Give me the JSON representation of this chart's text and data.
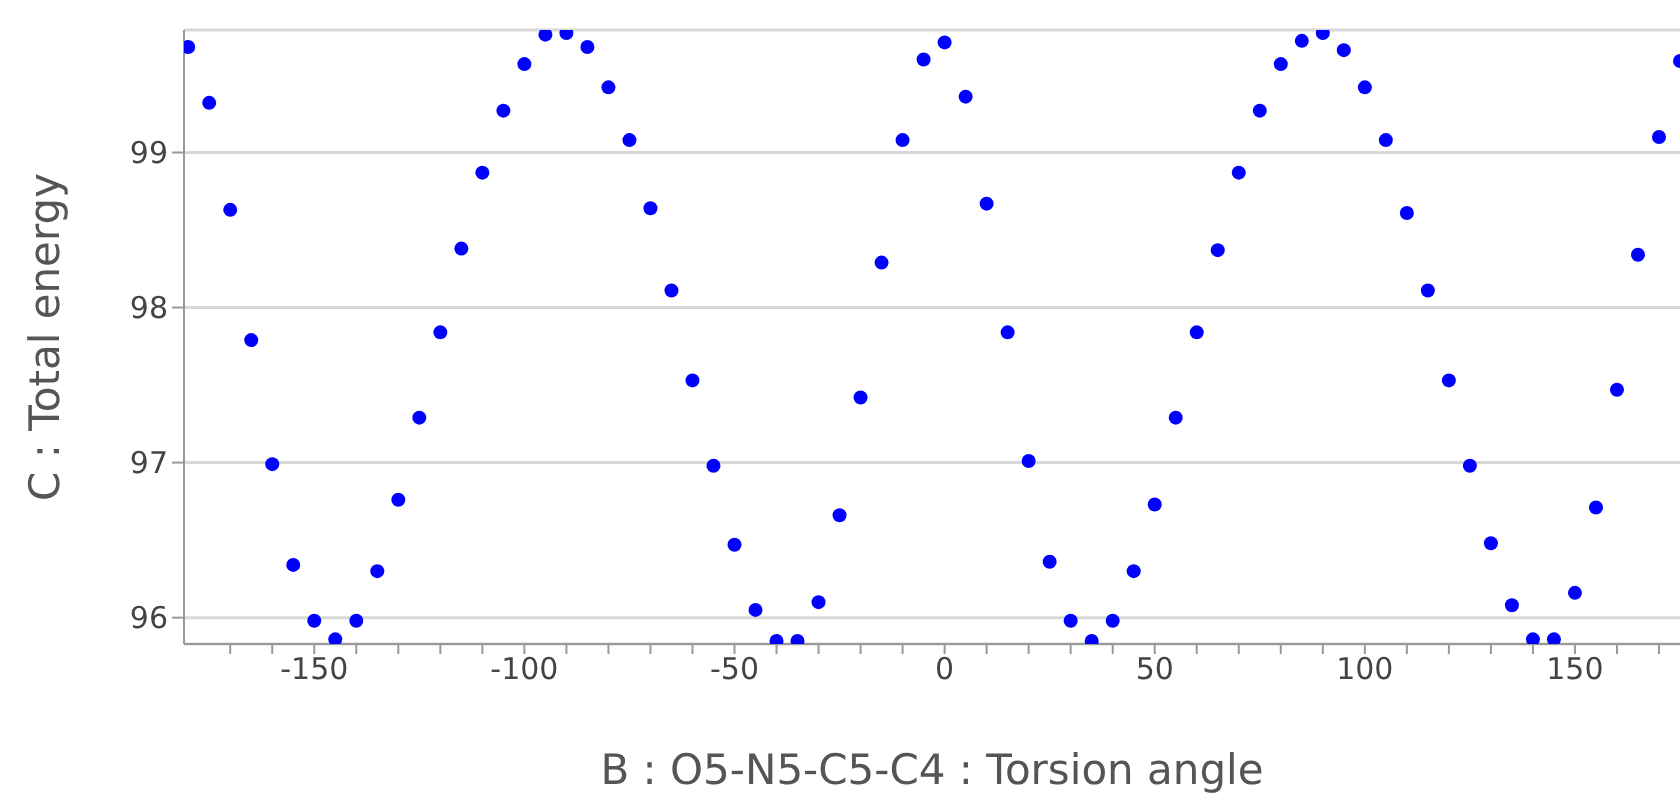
{
  "chart_data": {
    "type": "scatter",
    "xlabel": "B : O5-N5-C5-C4 : Torsion angle",
    "ylabel": "C : Total energy",
    "x": [
      -180,
      -175,
      -170,
      -165,
      -160,
      -155,
      -150,
      -145,
      -140,
      -135,
      -130,
      -125,
      -120,
      -115,
      -110,
      -105,
      -100,
      -95,
      -90,
      -85,
      -80,
      -75,
      -70,
      -65,
      -60,
      -55,
      -50,
      -45,
      -40,
      -35,
      -30,
      -25,
      -20,
      -15,
      -10,
      -5,
      0,
      5,
      10,
      15,
      20,
      25,
      30,
      35,
      40,
      45,
      50,
      55,
      60,
      65,
      70,
      75,
      80,
      85,
      90,
      95,
      100,
      105,
      110,
      115,
      120,
      125,
      130,
      135,
      140,
      145,
      150,
      155,
      160,
      165,
      170,
      175
    ],
    "series": [
      {
        "color": "#0000ff",
        "values": [
          99.68,
          99.32,
          98.63,
          97.79,
          96.99,
          96.34,
          95.98,
          95.86,
          95.98,
          96.3,
          96.76,
          97.29,
          97.84,
          98.38,
          98.87,
          99.27,
          99.57,
          99.76,
          99.77,
          99.68,
          99.42,
          99.08,
          98.64,
          98.11,
          97.53,
          96.98,
          96.47,
          96.05,
          95.85,
          95.85,
          96.1,
          96.66,
          97.42,
          98.29,
          99.08,
          99.6,
          99.71,
          99.36,
          98.67,
          97.84,
          97.01,
          96.36,
          95.98,
          95.85,
          95.98,
          96.3,
          96.73,
          97.29,
          97.84,
          98.37,
          98.87,
          99.27,
          99.57,
          99.72,
          99.77,
          99.66,
          99.42,
          99.08,
          98.61,
          98.11,
          97.53,
          96.98,
          96.48,
          96.08,
          95.86,
          95.86,
          96.16,
          96.71,
          97.47,
          98.34,
          99.1,
          99.59
        ]
      }
    ],
    "xlim": [
      -181,
      175
    ],
    "ylim": [
      95.83,
      99.79
    ],
    "xticks": [
      {
        "value": -170,
        "label": null
      },
      {
        "value": -160,
        "label": null
      },
      -150,
      {
        "value": -140,
        "label": null
      },
      {
        "value": -130,
        "label": null
      },
      {
        "value": -120,
        "label": null
      },
      {
        "value": -110,
        "label": null
      },
      -100,
      {
        "value": -90,
        "label": null
      },
      {
        "value": -80,
        "label": null
      },
      {
        "value": -70,
        "label": null
      },
      {
        "value": -60,
        "label": null
      },
      -50,
      {
        "value": -40,
        "label": null
      },
      {
        "value": -30,
        "label": null
      },
      {
        "value": -20,
        "label": null
      },
      {
        "value": -10,
        "label": null
      },
      0,
      {
        "value": 10,
        "label": null
      },
      {
        "value": 20,
        "label": null
      },
      {
        "value": 30,
        "label": null
      },
      {
        "value": 40,
        "label": null
      },
      50,
      {
        "value": 60,
        "label": null
      },
      {
        "value": 70,
        "label": null
      },
      {
        "value": 80,
        "label": null
      },
      {
        "value": 90,
        "label": null
      },
      100,
      {
        "value": 110,
        "label": null
      },
      {
        "value": 120,
        "label": null
      },
      {
        "value": 130,
        "label": null
      },
      {
        "value": 140,
        "label": null
      },
      150,
      {
        "value": 160,
        "label": null
      },
      {
        "value": 170,
        "label": null
      }
    ],
    "yticks": [
      96,
      97,
      98,
      99
    ],
    "grid": "y",
    "marker": "circle",
    "legend": false
  }
}
